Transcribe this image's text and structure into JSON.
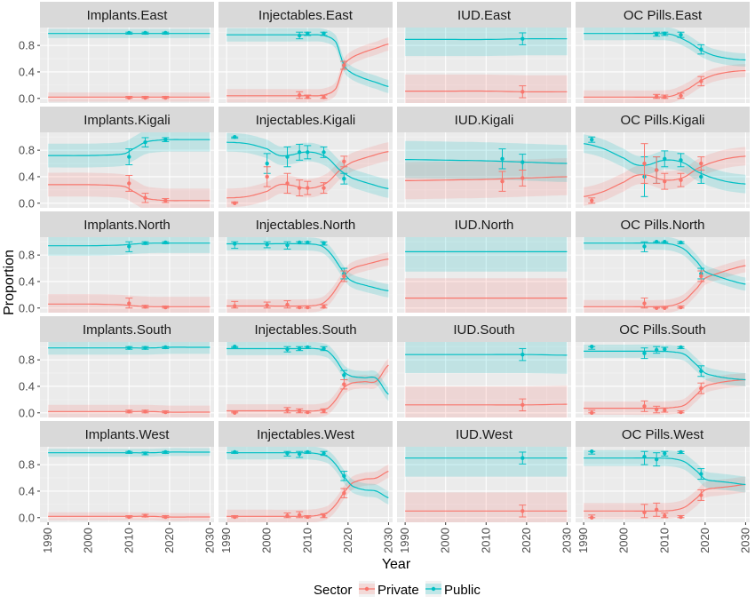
{
  "chart_data": {
    "type": "line",
    "y_axis_title": "Proportion",
    "x_axis_title": "Year",
    "x_ticks": [
      "1990",
      "2000",
      "2010",
      "2020",
      "2030"
    ],
    "y_ticks": [
      "0.0",
      "0.4",
      "0.8"
    ],
    "xlim": [
      1988,
      2031
    ],
    "ylim": [
      -0.07,
      1.07
    ],
    "legend": {
      "title": "Sector",
      "position": "bottom",
      "items": [
        {
          "name": "Private",
          "color": "#F8766D"
        },
        {
          "name": "Public",
          "color": "#00BFC4"
        }
      ]
    },
    "panels": [
      {
        "label": "Implants.East",
        "years": [
          1990,
          2005,
          2010,
          2015,
          2017,
          2020,
          2025,
          2030
        ],
        "public": [
          0.98,
          0.98,
          0.98,
          0.98,
          0.98,
          0.98,
          0.98,
          0.98
        ],
        "band": 0.07,
        "points": [
          [
            2010,
            0.99,
            0.02
          ],
          [
            2014,
            0.99,
            0.02
          ],
          [
            2019,
            0.99,
            0.02
          ]
        ]
      },
      {
        "label": "Injectables.East",
        "years": [
          1990,
          2000,
          2005,
          2010,
          2014,
          2017,
          2019,
          2021,
          2024,
          2027,
          2030
        ],
        "public": [
          0.96,
          0.96,
          0.96,
          0.96,
          0.95,
          0.85,
          0.5,
          0.38,
          0.3,
          0.24,
          0.18
        ],
        "band": 0.1,
        "points": [
          [
            2008,
            0.95,
            0.05
          ],
          [
            2010,
            0.98,
            0.03
          ],
          [
            2014,
            0.98,
            0.03
          ],
          [
            2019,
            0.5,
            0.06
          ]
        ]
      },
      {
        "label": "IUD.East",
        "years": [
          1990,
          2000,
          2010,
          2020,
          2030
        ],
        "public": [
          0.89,
          0.89,
          0.89,
          0.9,
          0.9
        ],
        "band": 0.25,
        "points": [
          [
            2019,
            0.9,
            0.09
          ]
        ]
      },
      {
        "label": "OC Pills.East",
        "years": [
          1990,
          2000,
          2008,
          2012,
          2016,
          2019,
          2022,
          2026,
          2030
        ],
        "public": [
          0.98,
          0.98,
          0.98,
          0.96,
          0.85,
          0.73,
          0.65,
          0.6,
          0.58
        ],
        "band": 0.1,
        "points": [
          [
            2008,
            0.97,
            0.03
          ],
          [
            2010,
            0.98,
            0.03
          ],
          [
            2014,
            0.96,
            0.04
          ],
          [
            2019,
            0.74,
            0.07
          ]
        ]
      },
      {
        "label": "Implants.Kigali",
        "years": [
          1990,
          2000,
          2006,
          2009,
          2011,
          2014,
          2017,
          2020,
          2025,
          2030
        ],
        "public": [
          0.72,
          0.72,
          0.73,
          0.75,
          0.82,
          0.92,
          0.95,
          0.96,
          0.96,
          0.96
        ],
        "band": 0.18,
        "points": [
          [
            2010,
            0.7,
            0.12
          ],
          [
            2014,
            0.92,
            0.07
          ],
          [
            2019,
            0.96,
            0.03
          ]
        ]
      },
      {
        "label": "Injectables.Kigali",
        "years": [
          1990,
          1995,
          2000,
          2003,
          2006,
          2009,
          2012,
          2015,
          2018,
          2021,
          2025,
          2030
        ],
        "public": [
          0.92,
          0.9,
          0.82,
          0.72,
          0.73,
          0.77,
          0.76,
          0.68,
          0.5,
          0.38,
          0.3,
          0.22
        ],
        "band": 0.14,
        "points": [
          [
            1992,
            1.0,
            0.02
          ],
          [
            2000,
            0.6,
            0.15
          ],
          [
            2005,
            0.7,
            0.15
          ],
          [
            2008,
            0.77,
            0.12
          ],
          [
            2010,
            0.77,
            0.1
          ],
          [
            2014,
            0.77,
            0.08
          ],
          [
            2019,
            0.37,
            0.08
          ]
        ]
      },
      {
        "label": "IUD.Kigali",
        "years": [
          1990,
          2000,
          2010,
          2020,
          2030
        ],
        "public": [
          0.66,
          0.65,
          0.64,
          0.62,
          0.6
        ],
        "band": 0.28,
        "points": [
          [
            2014,
            0.67,
            0.15
          ],
          [
            2019,
            0.62,
            0.12
          ]
        ]
      },
      {
        "label": "OC Pills.Kigali",
        "years": [
          1990,
          1995,
          2000,
          2003,
          2006,
          2009,
          2012,
          2015,
          2018,
          2021,
          2025,
          2030
        ],
        "public": [
          0.9,
          0.82,
          0.68,
          0.58,
          0.58,
          0.64,
          0.65,
          0.6,
          0.48,
          0.4,
          0.33,
          0.29
        ],
        "band": 0.14,
        "points": [
          [
            1992,
            0.96,
            0.04
          ],
          [
            2005,
            0.4,
            0.3
          ],
          [
            2008,
            0.5,
            0.2
          ],
          [
            2010,
            0.67,
            0.12
          ],
          [
            2014,
            0.65,
            0.1
          ],
          [
            2019,
            0.4,
            0.1
          ]
        ]
      },
      {
        "label": "Implants.North",
        "years": [
          1990,
          2000,
          2008,
          2012,
          2016,
          2020,
          2025,
          2030
        ],
        "public": [
          0.94,
          0.94,
          0.95,
          0.97,
          0.98,
          0.98,
          0.98,
          0.98
        ],
        "band": 0.15,
        "points": [
          [
            2010,
            0.93,
            0.08
          ],
          [
            2014,
            0.98,
            0.02
          ],
          [
            2019,
            0.99,
            0.02
          ]
        ]
      },
      {
        "label": "Injectables.North",
        "years": [
          1990,
          2000,
          2008,
          2012,
          2014,
          2016,
          2018,
          2020,
          2022,
          2025,
          2030
        ],
        "public": [
          0.97,
          0.97,
          0.97,
          0.96,
          0.92,
          0.8,
          0.62,
          0.45,
          0.38,
          0.33,
          0.26
        ],
        "band": 0.1,
        "points": [
          [
            1992,
            0.97,
            0.07
          ],
          [
            2000,
            0.96,
            0.05
          ],
          [
            2005,
            0.95,
            0.06
          ],
          [
            2008,
            0.99,
            0.02
          ],
          [
            2010,
            0.99,
            0.02
          ],
          [
            2014,
            0.98,
            0.03
          ],
          [
            2019,
            0.52,
            0.08
          ]
        ]
      },
      {
        "label": "IUD.North",
        "years": [
          1990,
          2000,
          2010,
          2020,
          2030
        ],
        "public": [
          0.85,
          0.85,
          0.85,
          0.85,
          0.85
        ],
        "band": 0.3,
        "points": []
      },
      {
        "label": "OC Pills.North",
        "years": [
          1990,
          2000,
          2008,
          2012,
          2015,
          2018,
          2020,
          2023,
          2026,
          2030
        ],
        "public": [
          0.98,
          0.98,
          0.98,
          0.96,
          0.88,
          0.7,
          0.55,
          0.48,
          0.42,
          0.36
        ],
        "band": 0.1,
        "points": [
          [
            2005,
            0.93,
            0.08
          ],
          [
            2008,
            1.0,
            0.02
          ],
          [
            2010,
            1.0,
            0.02
          ],
          [
            2014,
            0.99,
            0.02
          ],
          [
            2019,
            0.52,
            0.08
          ]
        ]
      },
      {
        "label": "Implants.South",
        "years": [
          1990,
          2000,
          2010,
          2015,
          2020,
          2025,
          2030
        ],
        "public": [
          0.98,
          0.98,
          0.98,
          0.98,
          0.99,
          0.99,
          0.99
        ],
        "band": 0.1,
        "points": [
          [
            2010,
            0.98,
            0.02
          ],
          [
            2014,
            0.98,
            0.02
          ],
          [
            2019,
            0.99,
            0.02
          ]
        ]
      },
      {
        "label": "Injectables.South",
        "years": [
          1990,
          2000,
          2008,
          2012,
          2015,
          2017,
          2019,
          2021,
          2024,
          2027,
          2030
        ],
        "public": [
          0.97,
          0.97,
          0.97,
          0.97,
          0.93,
          0.8,
          0.62,
          0.55,
          0.53,
          0.52,
          0.28
        ],
        "band": 0.1,
        "points": [
          [
            1992,
            1.0,
            0.02
          ],
          [
            2005,
            0.96,
            0.04
          ],
          [
            2008,
            0.97,
            0.03
          ],
          [
            2010,
            0.99,
            0.02
          ],
          [
            2014,
            0.97,
            0.03
          ],
          [
            2019,
            0.57,
            0.07
          ]
        ]
      },
      {
        "label": "IUD.South",
        "years": [
          1990,
          2000,
          2010,
          2020,
          2030
        ],
        "public": [
          0.88,
          0.88,
          0.88,
          0.88,
          0.87
        ],
        "band": 0.28,
        "points": [
          [
            2019,
            0.88,
            0.09
          ]
        ]
      },
      {
        "label": "OC Pills.South",
        "years": [
          1990,
          2000,
          2008,
          2012,
          2015,
          2018,
          2020,
          2023,
          2026,
          2030
        ],
        "public": [
          0.93,
          0.93,
          0.93,
          0.92,
          0.88,
          0.72,
          0.6,
          0.55,
          0.52,
          0.5
        ],
        "band": 0.1,
        "points": [
          [
            1992,
            1.0,
            0.04
          ],
          [
            2005,
            0.9,
            0.08
          ],
          [
            2008,
            0.95,
            0.05
          ],
          [
            2010,
            0.96,
            0.03
          ],
          [
            2014,
            0.99,
            0.02
          ],
          [
            2019,
            0.63,
            0.08
          ]
        ]
      },
      {
        "label": "Implants.West",
        "years": [
          1990,
          2000,
          2010,
          2015,
          2020,
          2025,
          2030
        ],
        "public": [
          0.98,
          0.98,
          0.98,
          0.98,
          0.99,
          0.99,
          0.99
        ],
        "band": 0.06,
        "points": [
          [
            2010,
            0.99,
            0.02
          ],
          [
            2014,
            0.97,
            0.02
          ],
          [
            2019,
            0.99,
            0.02
          ]
        ]
      },
      {
        "label": "Injectables.West",
        "years": [
          1990,
          2000,
          2008,
          2012,
          2015,
          2017,
          2019,
          2021,
          2024,
          2027,
          2030
        ],
        "public": [
          0.98,
          0.98,
          0.98,
          0.97,
          0.92,
          0.8,
          0.62,
          0.48,
          0.42,
          0.4,
          0.3
        ],
        "band": 0.1,
        "points": [
          [
            1992,
            0.99,
            0.02
          ],
          [
            2005,
            0.97,
            0.04
          ],
          [
            2008,
            0.96,
            0.05
          ],
          [
            2010,
            0.99,
            0.02
          ],
          [
            2014,
            0.97,
            0.03
          ],
          [
            2019,
            0.63,
            0.07
          ]
        ]
      },
      {
        "label": "IUD.West",
        "years": [
          1990,
          2000,
          2010,
          2020,
          2030
        ],
        "public": [
          0.9,
          0.9,
          0.9,
          0.9,
          0.9
        ],
        "band": 0.28,
        "points": [
          [
            2019,
            0.9,
            0.09
          ]
        ]
      },
      {
        "label": "OC Pills.West",
        "years": [
          1990,
          2000,
          2008,
          2012,
          2015,
          2018,
          2020,
          2023,
          2026,
          2030
        ],
        "public": [
          0.9,
          0.9,
          0.9,
          0.89,
          0.84,
          0.7,
          0.58,
          0.55,
          0.53,
          0.5
        ],
        "band": 0.12,
        "points": [
          [
            1992,
            1.0,
            0.04
          ],
          [
            2005,
            0.92,
            0.12
          ],
          [
            2008,
            0.88,
            0.1
          ],
          [
            2010,
            0.97,
            0.04
          ],
          [
            2014,
            0.99,
            0.02
          ],
          [
            2019,
            0.66,
            0.08
          ]
        ]
      }
    ]
  }
}
